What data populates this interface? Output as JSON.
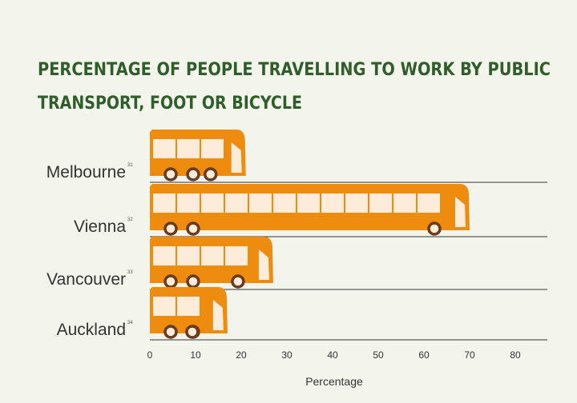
{
  "chart_data": {
    "type": "pictograph-bar",
    "title": [
      "PERCENTAGE OF PEOPLE TRAVELLING TO WORK BY PUBLIC",
      "TRANSPORT, FOOT OR BICYCLE"
    ],
    "categories": [
      "Melbourne",
      "Vienna",
      "Vancouver",
      "Auckland"
    ],
    "footnotes": [
      "31",
      "32",
      "33",
      "34"
    ],
    "values": [
      21,
      70,
      27,
      17
    ],
    "color": "#ee8c10",
    "x_label": "Percentage",
    "xlim": [
      0,
      80
    ],
    "xticks": [
      0,
      10,
      20,
      30,
      40,
      50,
      60,
      70,
      80
    ]
  }
}
